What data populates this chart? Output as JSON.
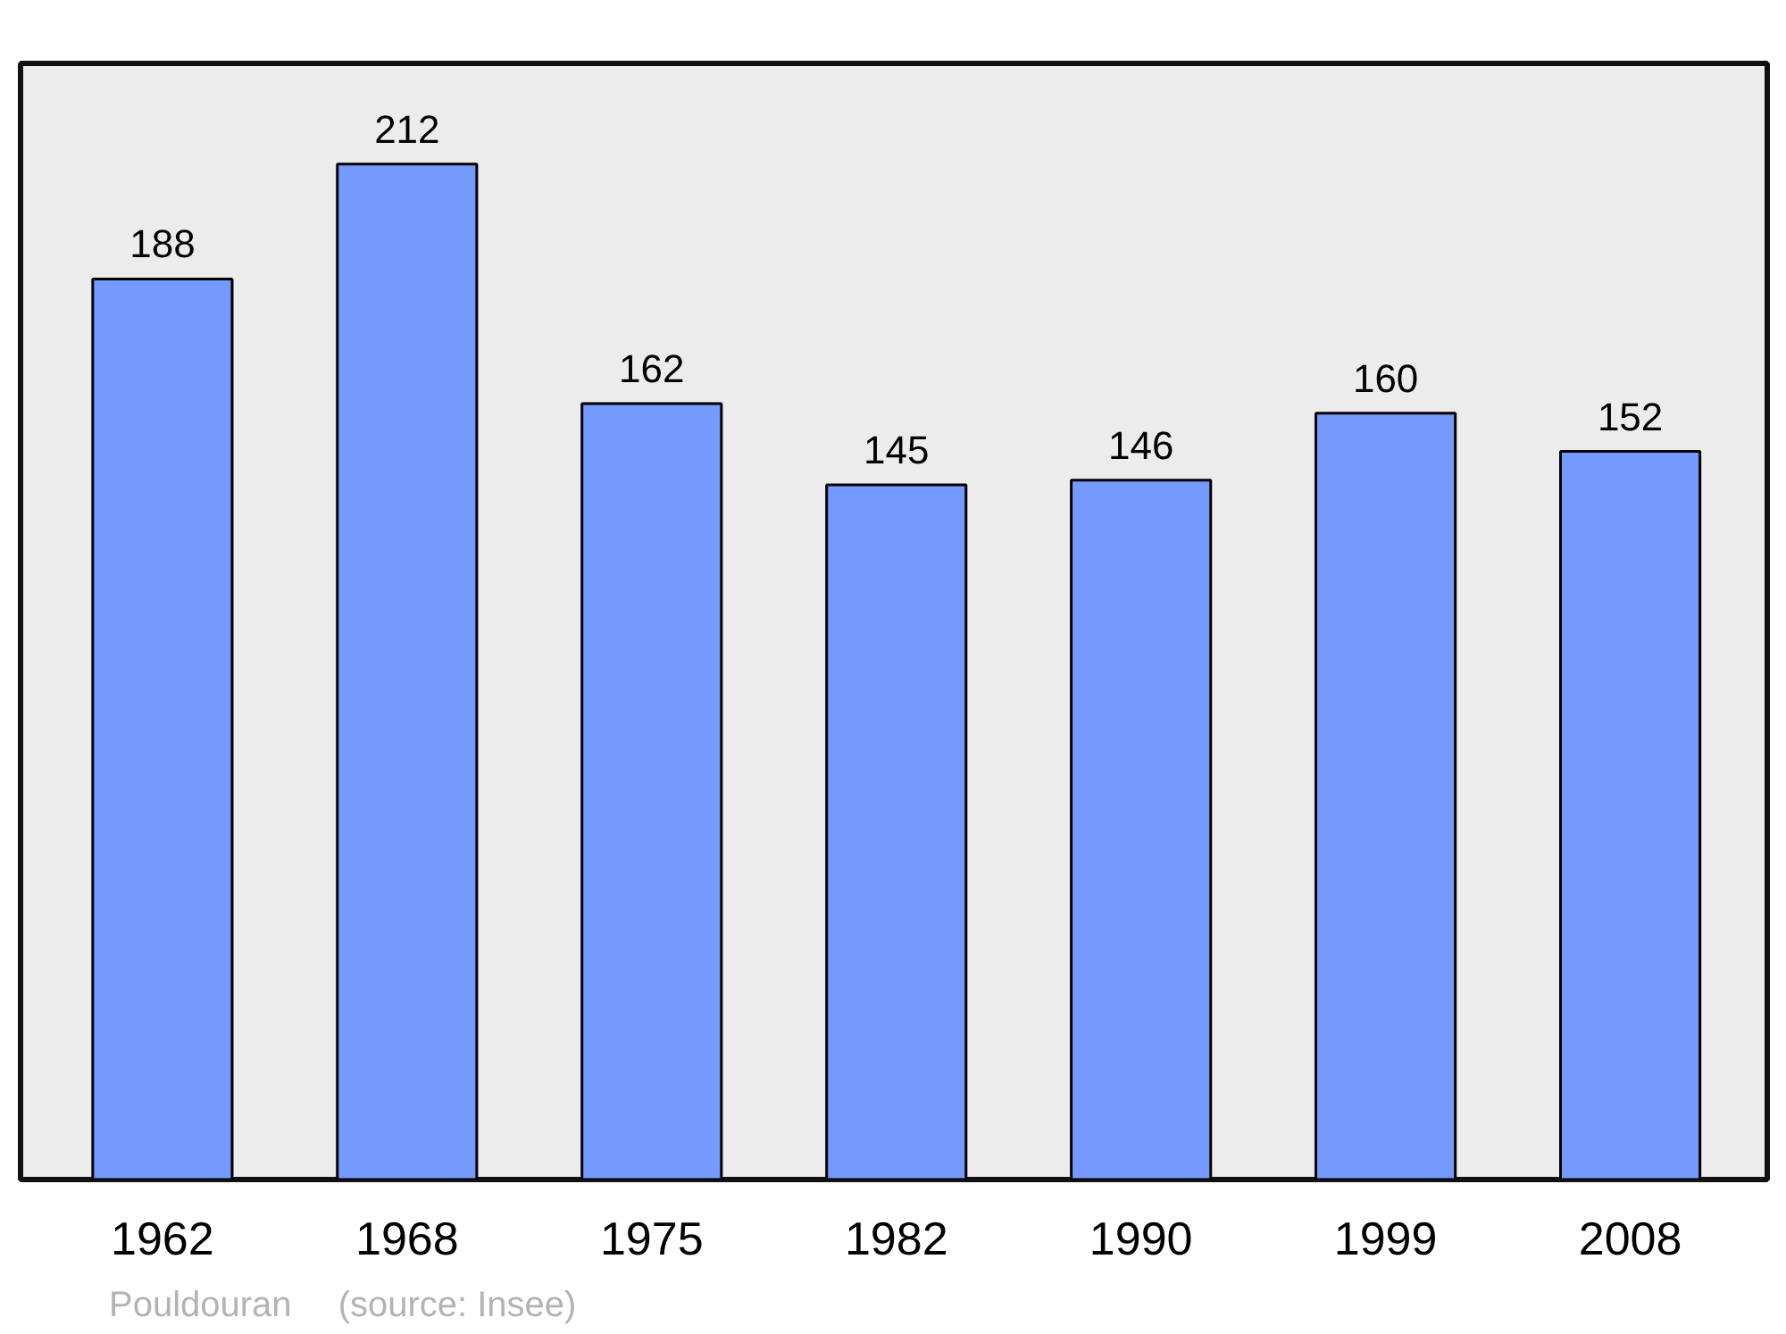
{
  "chart_data": {
    "type": "bar",
    "categories": [
      "1962",
      "1968",
      "1975",
      "1982",
      "1990",
      "1999",
      "2008"
    ],
    "values": [
      188,
      212,
      162,
      145,
      146,
      160,
      152
    ],
    "color": "#7499ff",
    "data_labels": true,
    "ylim": [
      0,
      233
    ],
    "tick_labels": "x",
    "grid": false,
    "annotations": [
      "Pouldouran",
      "(source: Insee)"
    ]
  }
}
